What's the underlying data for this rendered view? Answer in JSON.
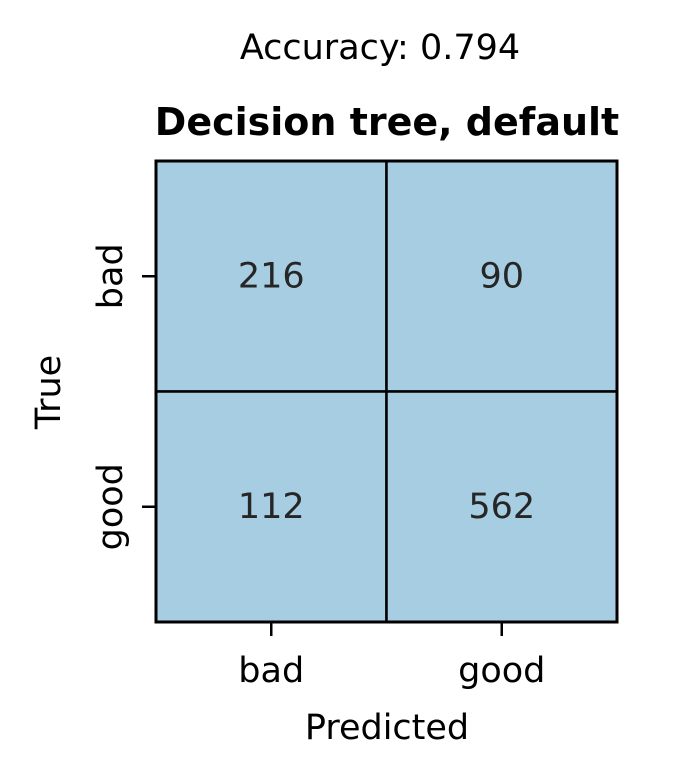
{
  "chart_data": {
    "type": "heatmap",
    "suptitle": "Accuracy: 0.794",
    "title": "Decision tree, default",
    "xlabel": "Predicted",
    "ylabel": "True",
    "x_categories": [
      "bad",
      "good"
    ],
    "y_categories": [
      "bad",
      "good"
    ],
    "values": [
      [
        216,
        90
      ],
      [
        112,
        562
      ]
    ],
    "cell_color": "#a6cde2",
    "grid_color": "#000000",
    "text_color": "#262626",
    "colorbar": false
  }
}
